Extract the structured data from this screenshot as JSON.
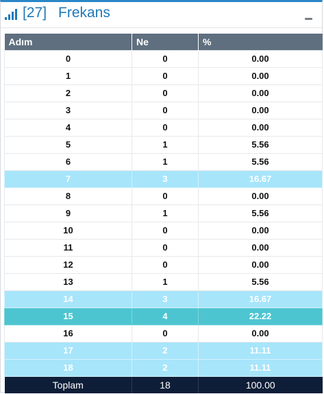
{
  "header": {
    "icon": "signal-bars-icon",
    "code": "[27]",
    "title": "Frekans"
  },
  "table": {
    "columns": [
      "Adım",
      "Ne",
      "%"
    ],
    "rows": [
      {
        "step": "0",
        "count": "0",
        "percent": "0.00",
        "highlight": "none"
      },
      {
        "step": "1",
        "count": "0",
        "percent": "0.00",
        "highlight": "none"
      },
      {
        "step": "2",
        "count": "0",
        "percent": "0.00",
        "highlight": "none"
      },
      {
        "step": "3",
        "count": "0",
        "percent": "0.00",
        "highlight": "none"
      },
      {
        "step": "4",
        "count": "0",
        "percent": "0.00",
        "highlight": "none"
      },
      {
        "step": "5",
        "count": "1",
        "percent": "5.56",
        "highlight": "none"
      },
      {
        "step": "6",
        "count": "1",
        "percent": "5.56",
        "highlight": "none"
      },
      {
        "step": "7",
        "count": "3",
        "percent": "16.67",
        "highlight": "light"
      },
      {
        "step": "8",
        "count": "0",
        "percent": "0.00",
        "highlight": "none"
      },
      {
        "step": "9",
        "count": "1",
        "percent": "5.56",
        "highlight": "none"
      },
      {
        "step": "10",
        "count": "0",
        "percent": "0.00",
        "highlight": "none"
      },
      {
        "step": "11",
        "count": "0",
        "percent": "0.00",
        "highlight": "none"
      },
      {
        "step": "12",
        "count": "0",
        "percent": "0.00",
        "highlight": "none"
      },
      {
        "step": "13",
        "count": "1",
        "percent": "5.56",
        "highlight": "none"
      },
      {
        "step": "14",
        "count": "3",
        "percent": "16.67",
        "highlight": "light"
      },
      {
        "step": "15",
        "count": "4",
        "percent": "22.22",
        "highlight": "strong"
      },
      {
        "step": "16",
        "count": "0",
        "percent": "0.00",
        "highlight": "none"
      },
      {
        "step": "17",
        "count": "2",
        "percent": "11.11",
        "highlight": "light"
      },
      {
        "step": "18",
        "count": "2",
        "percent": "11.11",
        "highlight": "light"
      }
    ],
    "footer": {
      "label": "Toplam",
      "count": "18",
      "percent": "100.00"
    }
  },
  "colors": {
    "accent": "#1f78b8",
    "header_row": "#5f6f7f",
    "highlight_light": "#a7e5fb",
    "highlight_strong": "#4dc5d0",
    "footer_row": "#0f1e38"
  }
}
